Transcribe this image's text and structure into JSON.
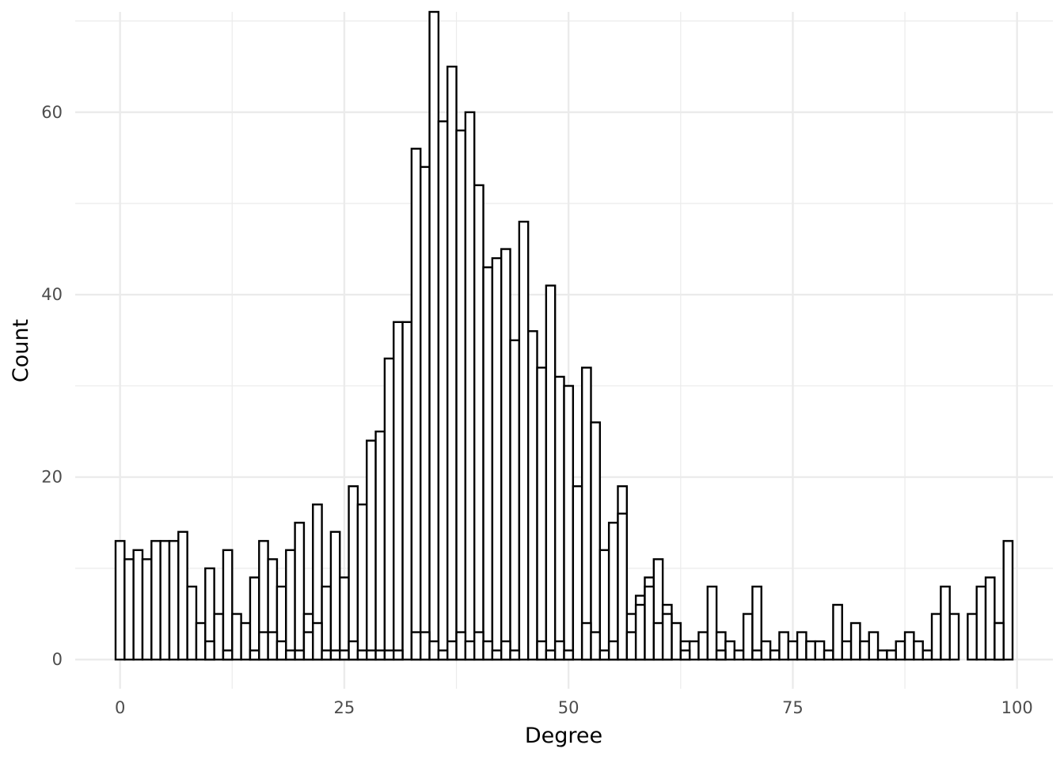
{
  "chart_data": {
    "type": "bar",
    "subtype": "histogram",
    "title": "",
    "xlabel": "Degree",
    "ylabel": "Count",
    "xlim": [
      -5,
      104
    ],
    "ylim": [
      -3.2,
      71
    ],
    "x_ticks": [
      0,
      25,
      50,
      75,
      100
    ],
    "y_ticks": [
      0,
      20,
      40,
      60
    ],
    "bin_width": 1,
    "grid": true,
    "legend": "none",
    "fill_color": "#ffffff",
    "outline_color": "#000000",
    "grid_color": "#ebebeb",
    "series": [
      {
        "x": [
          0,
          1,
          2,
          3,
          4,
          5,
          6,
          7,
          8,
          9,
          10,
          11,
          12,
          13,
          14,
          15,
          16,
          17,
          18,
          19,
          20,
          21,
          22,
          23,
          24,
          25,
          26,
          27,
          28,
          29,
          30,
          31,
          32,
          33,
          34,
          35,
          36,
          37,
          38,
          39,
          40,
          41,
          42,
          43,
          44,
          45,
          46,
          47,
          48,
          49,
          50,
          51,
          52,
          53,
          54,
          55,
          56,
          57,
          58,
          59,
          60,
          61,
          62,
          63,
          64,
          65,
          66,
          67,
          68,
          69,
          70,
          71,
          72,
          73,
          74,
          75,
          76,
          77,
          78,
          79,
          80,
          81,
          82,
          83,
          84,
          85,
          86,
          87,
          88,
          89,
          90,
          91,
          92,
          93,
          95,
          96,
          97,
          98,
          99
        ],
        "values": [
          13,
          11,
          12,
          11,
          13,
          13,
          13,
          14,
          8,
          4,
          10,
          5,
          12,
          5,
          4,
          9,
          13,
          11,
          8,
          12,
          15,
          5,
          17,
          8,
          14,
          9,
          19,
          17,
          24,
          25,
          33,
          37,
          37,
          56,
          54,
          71,
          59,
          65,
          58,
          60,
          52,
          43,
          44,
          45,
          35,
          48,
          36,
          32,
          41,
          31,
          30,
          19,
          32,
          26,
          12,
          15,
          19,
          5,
          7,
          9,
          11,
          6,
          4,
          2,
          2,
          3,
          8,
          3,
          2,
          1,
          5,
          8,
          2,
          1,
          3,
          2,
          3,
          2,
          2,
          1,
          6,
          2,
          4,
          2,
          3,
          1,
          1,
          2,
          3,
          2,
          1,
          5,
          8,
          5,
          5,
          8,
          9,
          4,
          13
        ]
      },
      {
        "x": [
          10,
          12,
          15,
          16,
          17,
          18,
          19,
          20,
          21,
          22,
          23,
          24,
          25,
          26,
          27,
          28,
          29,
          30,
          31,
          33,
          34,
          35,
          36,
          37,
          38,
          39,
          40,
          41,
          42,
          43,
          44,
          47,
          48,
          49,
          50,
          52,
          53,
          54,
          55,
          56,
          57,
          58,
          59,
          60,
          61,
          63,
          67,
          71,
          98
        ],
        "values": [
          2,
          1,
          1,
          3,
          3,
          2,
          1,
          1,
          3,
          4,
          1,
          1,
          1,
          2,
          1,
          1,
          1,
          1,
          1,
          3,
          3,
          2,
          1,
          2,
          3,
          2,
          3,
          2,
          1,
          2,
          1,
          2,
          1,
          2,
          1,
          4,
          3,
          1,
          2,
          16,
          3,
          6,
          8,
          4,
          5,
          1,
          1,
          1,
          4
        ]
      }
    ]
  }
}
